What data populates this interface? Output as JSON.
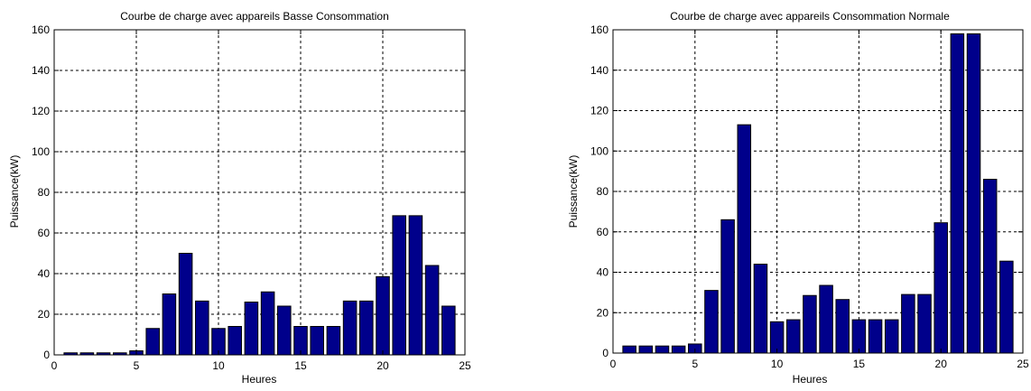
{
  "chart_data": [
    {
      "type": "bar",
      "title": "Courbe de charge avec appareils Basse Consommation",
      "xlabel": "Heures",
      "ylabel": "Puissance(kW)",
      "x": [
        1,
        2,
        3,
        4,
        5,
        6,
        7,
        8,
        9,
        10,
        11,
        12,
        13,
        14,
        15,
        16,
        17,
        18,
        19,
        20,
        21,
        22,
        23,
        24
      ],
      "values": [
        1,
        1,
        1,
        1,
        2,
        13,
        30,
        50,
        26.5,
        13,
        14,
        26,
        31,
        24,
        14,
        14,
        14,
        26.5,
        26.5,
        38.5,
        68.5,
        68.5,
        44,
        24
      ],
      "xlim": [
        0,
        25
      ],
      "ylim": [
        0,
        160
      ],
      "xticks": [
        0,
        5,
        10,
        15,
        20,
        25
      ],
      "yticks": [
        0,
        20,
        40,
        60,
        80,
        100,
        120,
        140,
        160
      ],
      "grid": true,
      "bar_color": "#00008B"
    },
    {
      "type": "bar",
      "title": "Courbe de charge avec appareils Consommation Normale",
      "xlabel": "Heures",
      "ylabel": "Puissance(kW)",
      "x": [
        1,
        2,
        3,
        4,
        5,
        6,
        7,
        8,
        9,
        10,
        11,
        12,
        13,
        14,
        15,
        16,
        17,
        18,
        19,
        20,
        21,
        22,
        23,
        24
      ],
      "values": [
        3.5,
        3.5,
        3.5,
        3.5,
        4.5,
        31,
        66,
        113,
        44,
        15.5,
        16.5,
        28.5,
        33.5,
        26.5,
        16.5,
        16.5,
        16.5,
        29,
        29,
        64.5,
        158,
        158,
        86,
        45.5
      ],
      "xlim": [
        0,
        25
      ],
      "ylim": [
        0,
        160
      ],
      "xticks": [
        0,
        5,
        10,
        15,
        20,
        25
      ],
      "yticks": [
        0,
        20,
        40,
        60,
        80,
        100,
        120,
        140,
        160
      ],
      "grid": true,
      "bar_color": "#00008B"
    }
  ]
}
